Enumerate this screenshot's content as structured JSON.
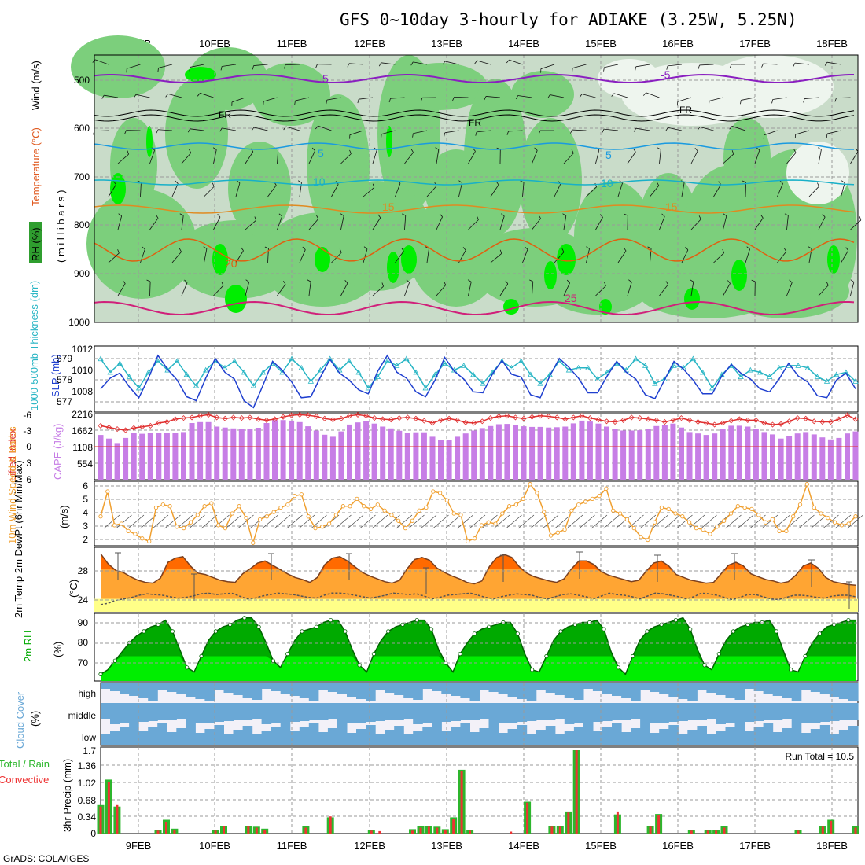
{
  "title": "GFS 0~10day 3-hourly for ADIAKE (3.25W, 5.25N)",
  "footer": "GrADS: COLA/IGES",
  "dates": [
    "9FEB",
    "10FEB",
    "11FEB",
    "12FEB",
    "13FEB",
    "14FEB",
    "15FEB",
    "16FEB",
    "17FEB",
    "18FEB"
  ],
  "colors": {
    "rh_dark": "#2f9e2f",
    "rh_mid": "#7ccf7c",
    "rh_light": "#c9dcc9",
    "rh_bright": "#00ee00",
    "precip_total": "#2db62d",
    "precip_conv": "#ee3333",
    "cloud": "#6aa8d6",
    "cape": "#c77ee6",
    "wind10": "#f0a030",
    "slp": "#1f3fcf",
    "thick": "#27b5c4",
    "temp2m": "#ffa533",
    "temp_warm": "#ff6a00",
    "dewpt": "#ffff88",
    "rh2m_dark": "#00aa00",
    "rh2m_light": "#00ee00"
  },
  "panels": {
    "upper_air": {
      "ylabel_rh": "RH (%)",
      "ylabel_temp": "Temperature (°C)",
      "ylabel_wind": "Wind (m/s)",
      "ylabel_p": "( m i l l i b a r s )",
      "yticks": [
        "500",
        "600",
        "700",
        "800",
        "900",
        "1000"
      ],
      "contour_labels": {
        "minus5": "-5",
        "fr": "FR",
        "t5": "5",
        "t10": "10",
        "t15": "15",
        "t20": "20",
        "t25": "25"
      }
    },
    "slp_thickness": {
      "ylabel_left": "1000-500mb Thickness (dm)",
      "ylabel_right": "SLP (mb)",
      "yticks_left": [
        "579",
        "578",
        "577"
      ],
      "yticks_right": [
        "1012",
        "1010",
        "1008"
      ]
    },
    "cape_li": {
      "ylabel_left": "Lifted Index",
      "ylabel_right": "CAPE (J/kg)",
      "yticks_left": [
        "-6",
        "-3",
        "0",
        "3",
        "6"
      ],
      "yticks_right": [
        "2216",
        "1662",
        "1108",
        "554"
      ]
    },
    "wind10": {
      "ylabel": "10m Wind Speed & Barbs",
      "yunit": "(m/s)",
      "yticks": [
        "6",
        "5",
        "4",
        "3",
        "2"
      ]
    },
    "temp2m": {
      "ylabel": "2m Temp 2m DewPt (6hr Min/Max)",
      "yunit": "(°C)",
      "yticks": [
        "28",
        "24"
      ]
    },
    "rh2m": {
      "ylabel": "2m RH",
      "yunit": "(%)",
      "yticks": [
        "90",
        "80",
        "70"
      ]
    },
    "cloud": {
      "ylabel": "Cloud Cover",
      "yunit": "(%)",
      "levels": [
        "high",
        "middle",
        "low"
      ]
    },
    "precip": {
      "ylabel_total": "Total / Rain",
      "ylabel_conv": "Convective",
      "ylabel": "3hr Precip (mm)",
      "yticks": [
        "1.7",
        "1.36",
        "1.02",
        "0.68",
        "0.34",
        "0"
      ],
      "run_total": "Run Total = 10.5"
    }
  },
  "chart_data": [
    {
      "type": "line",
      "title": "1000-500mb Thickness (dm)",
      "ylabel": "Thickness (dm)",
      "ylim": [
        576.6,
        579.4
      ],
      "x_start": "9FEB 00Z",
      "x_step_hours": 3,
      "values": [
        578.9,
        578.3,
        578.7,
        578.1,
        577.6,
        578.3,
        578.8,
        578.4,
        578.8,
        578.2,
        577.7,
        578.4,
        578.8,
        578.5,
        578.8,
        578.3,
        577.7,
        578.3,
        578.7,
        578.3,
        578.9,
        578.5,
        577.9,
        578.4,
        578.9,
        578.4,
        578.8,
        578.3,
        577.6,
        578.1,
        578.8,
        578.6,
        578.9,
        578.3,
        577.6,
        578.2,
        578.7,
        578.4,
        578.6,
        578.2,
        577.8,
        578.3,
        578.8,
        578.5,
        578.8,
        578.2,
        577.8,
        578.2,
        578.8,
        578.4,
        578.5,
        578.5,
        578.0,
        578.3,
        578.7,
        578.4,
        578.9,
        578.6,
        577.8,
        578.0,
        578.6,
        578.5,
        578.9,
        578.3,
        577.6,
        578.2,
        578.6,
        578.1,
        578.4,
        578.3,
        578.1,
        578.5,
        578.6,
        578.6,
        578.5,
        578.1,
        577.9,
        578.2,
        578.3,
        577.9
      ]
    },
    {
      "type": "line",
      "title": "SLP (mb)",
      "ylabel": "SLP (mb)",
      "ylim": [
        1006.2,
        1012.6
      ],
      "x_start": "9FEB 00Z",
      "x_step_hours": 3,
      "values": [
        1008.4,
        1009.5,
        1010.0,
        1008.6,
        1007.5,
        1009.5,
        1011.8,
        1010.4,
        1009.3,
        1007.6,
        1007.2,
        1009.5,
        1011.5,
        1010.1,
        1009.4,
        1007.2,
        1006.5,
        1008.8,
        1011.2,
        1010.3,
        1009.1,
        1007.5,
        1007.6,
        1009.6,
        1011.4,
        1010.0,
        1009.3,
        1008.3,
        1007.9,
        1010.2,
        1011.8,
        1010.1,
        1009.5,
        1008.1,
        1007.6,
        1009.3,
        1011.6,
        1010.2,
        1009.4,
        1008.1,
        1008.0,
        1009.9,
        1011.3,
        1009.9,
        1009.6,
        1007.8,
        1007.5,
        1009.7,
        1011.5,
        1010.6,
        1009.5,
        1008.0,
        1008.0,
        1009.7,
        1011.2,
        1010.1,
        1009.4,
        1007.8,
        1007.4,
        1009.3,
        1011.2,
        1010.4,
        1009.3,
        1007.9,
        1007.9,
        1009.7,
        1010.9,
        1010.0,
        1009.4,
        1008.4,
        1008.1,
        1009.4,
        1011.0,
        1009.7,
        1009.1,
        1007.7,
        1007.5,
        1009.3,
        1010.0,
        1008.4
      ]
    },
    {
      "type": "bar",
      "title": "CAPE (J/kg)",
      "ylabel": "CAPE (J/kg)",
      "ylim": [
        0,
        2216
      ],
      "x_start": "9FEB 00Z",
      "x_step_hours": 3,
      "values": [
        1500,
        1380,
        1230,
        1400,
        1560,
        1540,
        1560,
        1570,
        1580,
        1580,
        1600,
        1900,
        1930,
        1930,
        1780,
        1750,
        1720,
        1700,
        1700,
        1740,
        1900,
        2000,
        2000,
        1980,
        1930,
        1790,
        1650,
        1510,
        1440,
        1620,
        1850,
        1920,
        1970,
        1880,
        1780,
        1720,
        1640,
        1580,
        1590,
        1590,
        1440,
        1320,
        1320,
        1440,
        1550,
        1650,
        1730,
        1800,
        1860,
        1870,
        1820,
        1790,
        1770,
        1770,
        1750,
        1760,
        1780,
        1890,
        1980,
        1950,
        1880,
        1780,
        1700,
        1650,
        1650,
        1660,
        1700,
        1800,
        1830,
        1880,
        1750,
        1600,
        1550,
        1500,
        1550,
        1700,
        1810,
        1810,
        1780,
        1690,
        1600,
        1520,
        1380,
        1450,
        1550,
        1600,
        1520,
        1420,
        1350,
        1400,
        1550,
        1620
      ]
    },
    {
      "type": "line",
      "title": "Lifted Index",
      "ylabel": "Lifted Index",
      "ylim": [
        6,
        -6
      ],
      "x_start": "9FEB 00Z",
      "x_step_hours": 3,
      "values": [
        -3.8,
        -3.5,
        -3.2,
        -3.0,
        -3.4,
        -3.6,
        -3.8,
        -4.3,
        -4.5,
        -5.0,
        -5.2,
        -5.3,
        -5.6,
        -5.8,
        -5.3,
        -5.1,
        -5.3,
        -5.2,
        -5.3,
        -5.0,
        -4.8,
        -5.0,
        -5.4,
        -5.7,
        -5.8,
        -5.7,
        -5.5,
        -5.1,
        -4.9,
        -5.1,
        -5.6,
        -5.8,
        -5.6,
        -5.2,
        -5.0,
        -4.9,
        -5.2,
        -5.3,
        -5.1,
        -4.7,
        -4.3,
        -4.8,
        -5.1,
        -4.8,
        -4.4,
        -4.3,
        -4.6,
        -5.2,
        -5.5,
        -5.6,
        -5.3,
        -5.1,
        -5.4,
        -5.6,
        -5.5,
        -5.3,
        -5.0,
        -5.3,
        -5.6,
        -5.2,
        -4.9,
        -4.6,
        -4.5,
        -4.8,
        -5.3,
        -5.2,
        -5.0,
        -4.8,
        -4.5,
        -4.8,
        -5.2,
        -4.8,
        -4.5,
        -4.3,
        -4.0,
        -4.3,
        -4.7,
        -5.0,
        -4.8,
        -4.8,
        -4.3,
        -4.0,
        -4.1,
        -4.6,
        -5.2,
        -5.1,
        -4.6,
        -4.5,
        -4.5,
        -5.0,
        -5.7,
        -5.0
      ]
    },
    {
      "type": "line",
      "title": "10m Wind Speed (m/s)",
      "ylabel": "Speed (m/s)",
      "ylim": [
        1.8,
        6.2
      ],
      "x_start": "9FEB 00Z",
      "x_step_hours": 3,
      "values": [
        3.8,
        5.5,
        3.2,
        3.3,
        2.8,
        2.6,
        2.3,
        2.1,
        4.4,
        4.6,
        4.5,
        3.1,
        3.0,
        3.4,
        3.9,
        4.5,
        4.7,
        3.2,
        3.0,
        4.0,
        4.5,
        3.7,
        2.0,
        3.6,
        3.8,
        4.1,
        4.4,
        4.6,
        5.2,
        5.3,
        3.8,
        3.0,
        3.1,
        3.3,
        3.9,
        4.5,
        4.5,
        5.0,
        4.5,
        4.3,
        4.6,
        4.2,
        3.9,
        3.5,
        3.0,
        3.5,
        4.2,
        4.4,
        5.5,
        5.4,
        4.9,
        4.0,
        3.9,
        2.1,
        2.3,
        3.2,
        3.4,
        3.3,
        4.0,
        4.5,
        4.6,
        5.0,
        6.0,
        5.4,
        4.1,
        2.5,
        2.7,
        2.9,
        4.2,
        4.6,
        4.8,
        5.0,
        5.2,
        5.7,
        4.2,
        4.0,
        3.6,
        3.0,
        2.4,
        2.2,
        3.4,
        4.4,
        4.3,
        4.0,
        3.8,
        3.4,
        3.0,
        2.9,
        2.6,
        3.1,
        3.5,
        4.0,
        4.5,
        4.4,
        4.3,
        3.9,
        3.4,
        3.6,
        2.8,
        2.8,
        3.8,
        4.6,
        6.0,
        4.4,
        4.0,
        3.7,
        3.4,
        3.2,
        3.3,
        3.8
      ]
    },
    {
      "type": "area",
      "title": "2m Temp (°C)",
      "ylabel": "Temp (°C)",
      "ylim": [
        22,
        31
      ],
      "x_start": "9FEB 00Z",
      "x_step_hours": 3,
      "values": [
        30.1,
        28.7,
        27.8,
        27.5,
        26.9,
        26.4,
        26.1,
        26.0,
        26.7,
        28.9,
        29.5,
        29.7,
        28.4,
        27.4,
        27.2,
        26.8,
        26.4,
        26.2,
        26.1,
        27.3,
        28.0,
        28.8,
        29.1,
        28.5,
        27.9,
        27.3,
        26.8,
        26.5,
        26.1,
        26.8,
        28.6,
        29.5,
        29.7,
        29.1,
        28.3,
        27.5,
        27.0,
        26.6,
        26.2,
        26.0,
        26.4,
        28.0,
        29.3,
        29.6,
        29.2,
        28.1,
        27.5,
        27.0,
        26.6,
        26.1,
        25.9,
        26.3,
        28.3,
        29.6,
        30.0,
        29.6,
        28.3,
        27.4,
        26.9,
        26.6,
        26.3,
        26.1,
        26.6,
        28.0,
        29.1,
        29.1,
        28.6,
        27.6,
        27.1,
        26.8,
        26.5,
        26.2,
        26.4,
        27.7,
        28.8,
        29.1,
        28.4,
        27.2,
        26.8,
        26.4,
        26.2,
        26.0,
        26.1,
        27.3,
        28.5,
        28.9,
        28.4,
        27.3,
        26.9,
        26.5,
        26.3,
        26.0,
        26.2,
        27.1,
        28.4,
        28.8,
        28.1,
        26.8,
        26.2,
        26.0,
        25.8,
        25.7
      ]
    },
    {
      "type": "line",
      "title": "2m DewPt (°C)",
      "ylabel": "DewPt (°C)",
      "ylim": [
        22,
        31
      ],
      "x_start": "9FEB 00Z",
      "x_step_hours": 3,
      "values": [
        23.0,
        23.2,
        23.6,
        23.8,
        24.0,
        24.3,
        24.5,
        24.4,
        24.3,
        24.1,
        23.9,
        24.0,
        24.2,
        24.5,
        24.6,
        24.4,
        24.5,
        24.6,
        24.2,
        23.8,
        23.9,
        24.2,
        24.4,
        24.6,
        24.5,
        24.4,
        24.2,
        24.0,
        23.9,
        24.3,
        24.6,
        24.6,
        24.5,
        24.3,
        24.1,
        23.9,
        24.1,
        24.3,
        24.6,
        24.5,
        24.4,
        24.5,
        24.2,
        23.8,
        24.0,
        24.3,
        24.4,
        24.5,
        24.6,
        24.3,
        24.0,
        23.8,
        24.1,
        24.3,
        24.5,
        24.4,
        24.3,
        24.0,
        23.8,
        24.1,
        24.4,
        24.5,
        24.3,
        24.1,
        23.8,
        24.2,
        24.6,
        24.4,
        24.3,
        24.1,
        23.8,
        24.2,
        24.6,
        24.5,
        24.3,
        24.1,
        23.8,
        24.1,
        24.6,
        24.5,
        24.3,
        24.0,
        23.7,
        24.0,
        24.4,
        24.4,
        24.1,
        23.8,
        23.7,
        24.0,
        24.3,
        24.3,
        24.2,
        24.0,
        23.9,
        24.2,
        24.3,
        24.3,
        24.1
      ]
    },
    {
      "type": "area",
      "title": "2m RH (%)",
      "ylabel": "RH (%)",
      "ylim": [
        62,
        92
      ],
      "x_start": "9FEB 00Z",
      "x_step_hours": 3,
      "values": [
        65,
        67,
        71,
        75,
        79,
        82,
        84,
        86,
        87,
        89,
        84,
        76,
        68,
        66,
        73,
        80,
        84,
        86,
        87,
        89,
        90,
        90,
        86,
        79,
        71,
        68,
        74,
        80,
        84,
        85,
        86,
        88,
        89,
        89,
        84,
        76,
        69,
        66,
        74,
        80,
        84,
        86,
        87,
        88,
        89,
        89,
        85,
        76,
        70,
        66,
        74,
        79,
        83,
        85,
        86,
        87,
        88,
        88,
        83,
        74,
        67,
        66,
        73,
        80,
        84,
        86,
        87,
        88,
        88,
        89,
        85,
        75,
        68,
        65,
        73,
        80,
        84,
        86,
        87,
        88,
        89,
        90,
        85,
        76,
        69,
        67,
        74,
        80,
        84,
        86,
        87,
        88,
        88,
        89,
        84,
        75,
        67,
        66,
        73,
        79,
        83,
        86,
        87,
        88,
        89,
        89
      ]
    },
    {
      "type": "bar",
      "title": "3hr Precip Total/Rain (mm)",
      "ylabel": "3hr Precip (mm)",
      "ylim": [
        0,
        1.7
      ],
      "x_start": "9FEB 00Z",
      "x_step_hours": 3,
      "values": [
        0.58,
        1.1,
        0.55,
        0,
        0,
        0,
        0,
        0.08,
        0.28,
        0.1,
        0,
        0,
        0,
        0,
        0.08,
        0.15,
        0,
        0,
        0.16,
        0.14,
        0.1,
        0,
        0,
        0,
        0,
        0.15,
        0,
        0,
        0.33,
        0,
        0,
        0,
        0,
        0.08,
        0,
        0,
        0,
        0,
        0.09,
        0.16,
        0.15,
        0.14,
        0.09,
        0.33,
        1.3,
        0.08,
        0,
        0,
        0,
        0,
        0,
        0,
        0.65,
        0,
        0,
        0.15,
        0.16,
        0.45,
        1.7,
        0,
        0,
        0,
        0,
        0.39,
        0,
        0,
        0,
        0.15,
        0.4,
        0,
        0,
        0,
        0.08,
        0,
        0.08,
        0.08,
        0.15,
        0,
        0,
        0,
        0,
        0,
        0,
        0,
        0,
        0.08,
        0,
        0,
        0.16,
        0.28,
        0,
        0,
        0.15
      ]
    },
    {
      "type": "bar",
      "title": "3hr Precip Convective (mm)",
      "ylabel": "3hr Precip (mm)",
      "ylim": [
        0,
        1.7
      ],
      "x_start": "9FEB 00Z",
      "x_step_hours": 3,
      "values": [
        0.55,
        1.05,
        0.58,
        0,
        0,
        0,
        0,
        0.06,
        0.24,
        0.08,
        0,
        0,
        0,
        0,
        0.06,
        0.15,
        0,
        0,
        0.16,
        0.12,
        0.08,
        0,
        0,
        0,
        0,
        0.12,
        0,
        0,
        0.35,
        0,
        0,
        0,
        0,
        0.06,
        0.05,
        0,
        0,
        0,
        0.06,
        0.12,
        0.14,
        0.12,
        0.08,
        0.3,
        1.28,
        0.06,
        0,
        0,
        0,
        0,
        0.04,
        0,
        0.63,
        0,
        0,
        0.14,
        0.14,
        0.43,
        1.7,
        0,
        0,
        0,
        0,
        0.45,
        0,
        0,
        0,
        0.14,
        0.38,
        0,
        0,
        0,
        0.06,
        0,
        0.06,
        0.06,
        0.12,
        0,
        0,
        0,
        0,
        0,
        0,
        0,
        0,
        0.06,
        0,
        0,
        0.14,
        0.26,
        0,
        0,
        0.12
      ]
    }
  ]
}
